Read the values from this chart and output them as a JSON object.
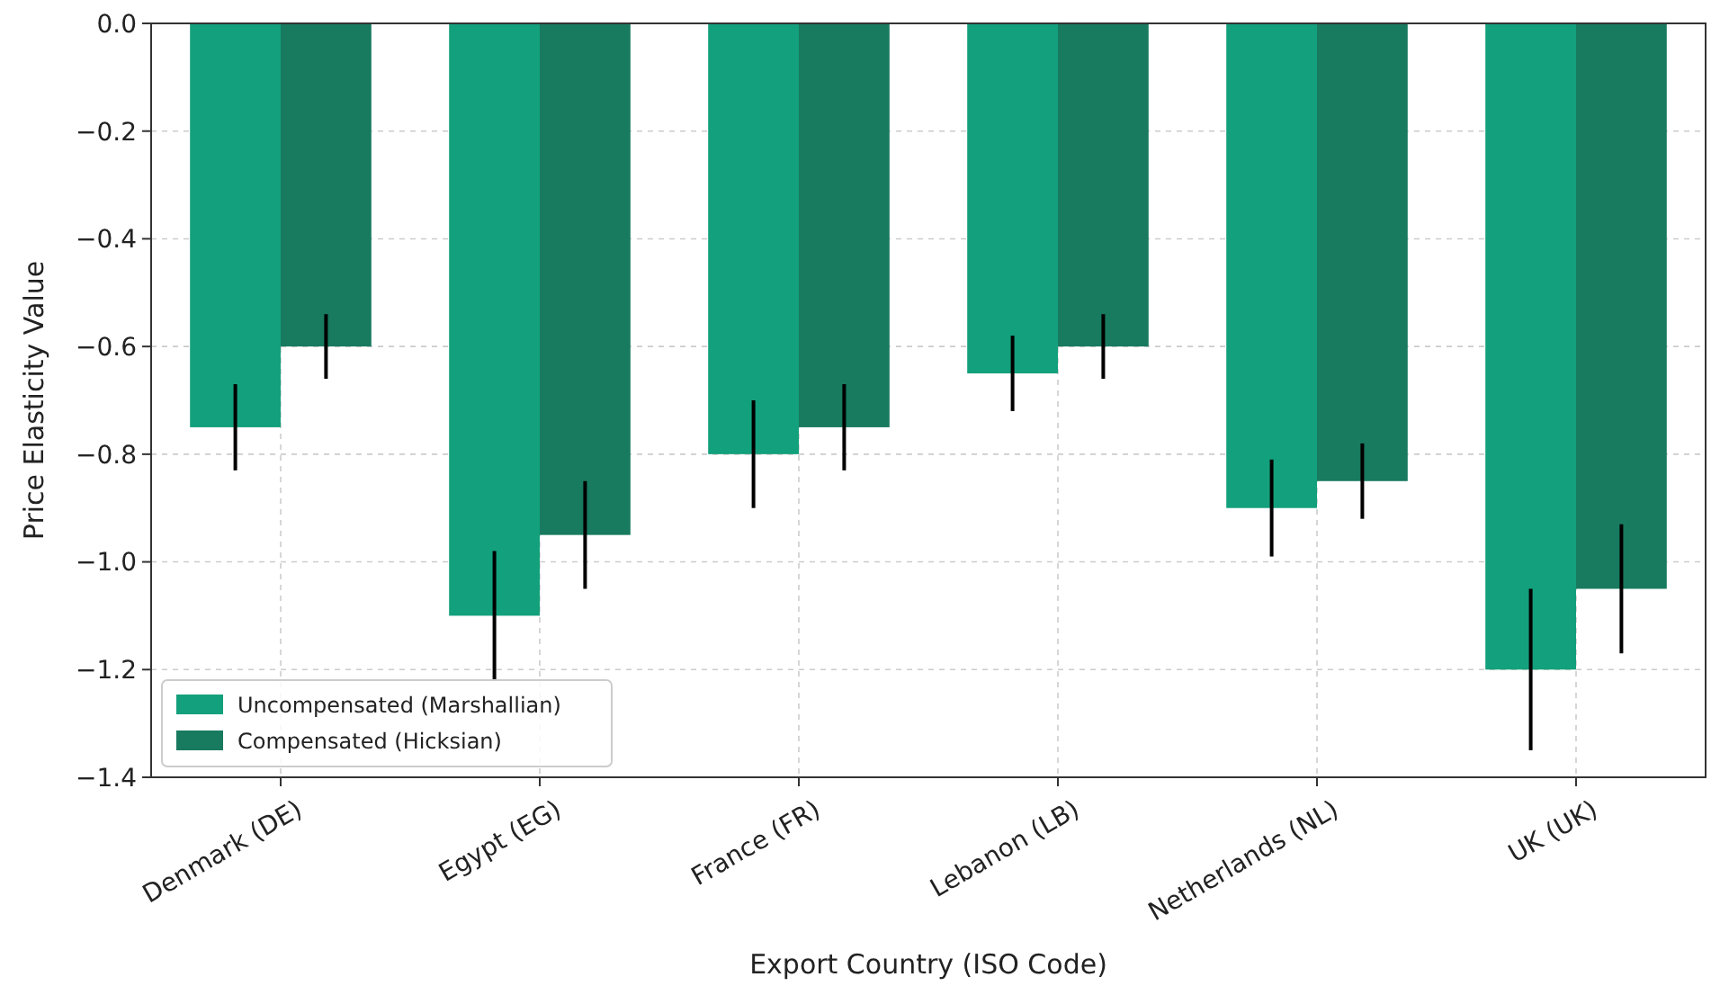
{
  "chart_data": {
    "type": "bar",
    "xlabel": "Export Country (ISO Code)",
    "ylabel": "Price Elasticity Value",
    "categories": [
      "Denmark (DE)",
      "Egypt (EG)",
      "France (FR)",
      "Lebanon (LB)",
      "Netherlands (NL)",
      "UK (UK)"
    ],
    "series": [
      {
        "name": "Uncompensated (Marshallian)",
        "color": "#13a07c",
        "values": [
          -0.75,
          -1.1,
          -0.8,
          -0.65,
          -0.9,
          -1.2
        ],
        "errors": [
          0.08,
          0.12,
          0.1,
          0.07,
          0.09,
          0.15
        ]
      },
      {
        "name": "Compensated (Hicksian)",
        "color": "#187a5f",
        "values": [
          -0.6,
          -0.95,
          -0.75,
          -0.6,
          -0.85,
          -1.05
        ],
        "errors": [
          0.06,
          0.1,
          0.08,
          0.06,
          0.07,
          0.12
        ]
      }
    ],
    "ylim": [
      -1.4,
      0
    ],
    "yticks": [
      {
        "value": 0,
        "label": "0.0"
      },
      {
        "value": -0.2,
        "label": "−0.2"
      },
      {
        "value": -0.4,
        "label": "−0.4"
      },
      {
        "value": -0.6,
        "label": "−0.6"
      },
      {
        "value": -0.8,
        "label": "−0.8"
      },
      {
        "value": -1.0,
        "label": "−1.0"
      },
      {
        "value": -1.2,
        "label": "−1.2"
      },
      {
        "value": -1.4,
        "label": "−1.4"
      }
    ],
    "grid": true,
    "legend": "bottom left"
  }
}
